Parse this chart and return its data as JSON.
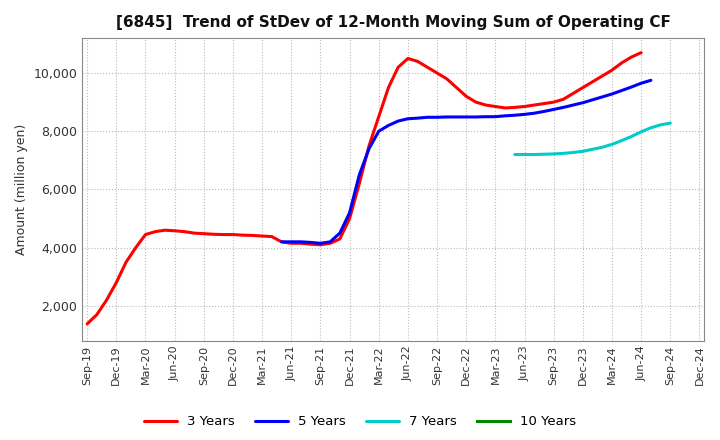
{
  "title": "[6845]  Trend of StDev of 12-Month Moving Sum of Operating CF",
  "ylabel": "Amount (million yen)",
  "background_color": "#ffffff",
  "plot_bg_color": "#ffffff",
  "grid_color": "#bbbbbb",
  "series": {
    "3 Years": {
      "color": "#ff0000",
      "x": [
        0,
        1,
        2,
        3,
        4,
        5,
        6,
        7,
        8,
        9,
        10,
        11,
        12,
        13,
        14,
        15,
        16,
        17,
        18,
        19,
        20,
        21,
        22,
        23,
        24,
        25,
        26,
        27,
        28,
        29,
        30,
        31,
        32,
        33,
        34,
        35,
        36,
        37,
        38,
        39,
        40,
        41,
        42,
        43,
        44,
        45,
        46,
        47,
        48,
        49,
        50,
        51,
        52,
        53,
        54,
        55,
        56,
        57
      ],
      "y": [
        1380,
        1700,
        2200,
        2800,
        3500,
        4000,
        4450,
        4550,
        4600,
        4580,
        4550,
        4500,
        4480,
        4460,
        4450,
        4450,
        4430,
        4420,
        4400,
        4380,
        4200,
        4150,
        4150,
        4120,
        4100,
        4150,
        4300,
        5000,
        6200,
        7500,
        8500,
        9500,
        10200,
        10500,
        10400,
        10200,
        10000,
        9800,
        9500,
        9200,
        9000,
        8900,
        8850,
        8800,
        8820,
        8850,
        8900,
        8950,
        9000,
        9100,
        9300,
        9500,
        9700,
        9900,
        10100,
        10350,
        10550,
        10700
      ]
    },
    "5 Years": {
      "color": "#0000ff",
      "x": [
        20,
        21,
        22,
        23,
        24,
        25,
        26,
        27,
        28,
        29,
        30,
        31,
        32,
        33,
        34,
        35,
        36,
        37,
        38,
        39,
        40,
        41,
        42,
        43,
        44,
        45,
        46,
        47,
        48,
        49,
        50,
        51,
        52,
        53,
        54,
        55,
        56,
        57,
        58
      ],
      "y": [
        4200,
        4200,
        4200,
        4180,
        4150,
        4200,
        4500,
        5200,
        6500,
        7400,
        8000,
        8200,
        8350,
        8430,
        8450,
        8480,
        8480,
        8490,
        8490,
        8490,
        8490,
        8500,
        8500,
        8530,
        8550,
        8580,
        8620,
        8680,
        8750,
        8820,
        8900,
        8980,
        9080,
        9180,
        9280,
        9400,
        9520,
        9650,
        9750
      ]
    },
    "7 Years": {
      "color": "#00cccc",
      "x": [
        44,
        45,
        46,
        47,
        48,
        49,
        50,
        51,
        52,
        53,
        54,
        55,
        56,
        57,
        58,
        59,
        60
      ],
      "y": [
        7200,
        7200,
        7200,
        7210,
        7220,
        7240,
        7270,
        7310,
        7380,
        7450,
        7550,
        7680,
        7820,
        7980,
        8120,
        8220,
        8280
      ]
    },
    "10 Years": {
      "color": "#008800",
      "x": [],
      "y": []
    }
  },
  "xtick_labels": [
    "Sep-19",
    "Dec-19",
    "Mar-20",
    "Jun-20",
    "Sep-20",
    "Dec-20",
    "Mar-21",
    "Jun-21",
    "Sep-21",
    "Dec-21",
    "Mar-22",
    "Jun-22",
    "Sep-22",
    "Dec-22",
    "Mar-23",
    "Jun-23",
    "Sep-23",
    "Dec-23",
    "Mar-24",
    "Jun-24",
    "Sep-24",
    "Dec-24"
  ],
  "xtick_positions": [
    0,
    3,
    6,
    9,
    12,
    15,
    18,
    21,
    24,
    27,
    30,
    33,
    36,
    39,
    42,
    45,
    48,
    51,
    54,
    57,
    60,
    63
  ],
  "ylim": [
    800,
    11200
  ],
  "yticks": [
    2000,
    4000,
    6000,
    8000,
    10000
  ],
  "xlim": [
    -0.5,
    63.5
  ]
}
